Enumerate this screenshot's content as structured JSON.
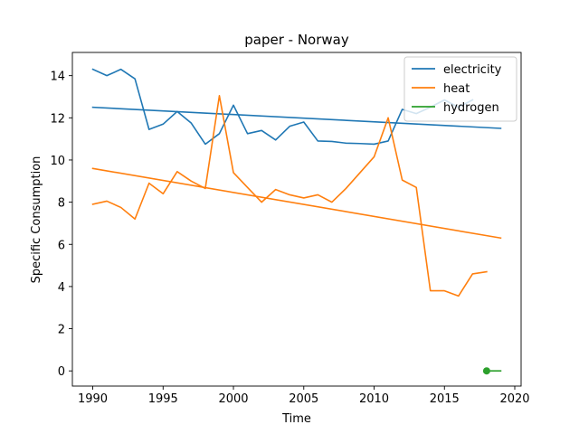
{
  "chart_data": {
    "type": "line",
    "title": "paper - Norway",
    "xlabel": "Time",
    "ylabel": "Specific Consumption",
    "xlim": [
      1988.55,
      2020.45
    ],
    "ylim": [
      -0.72,
      15.1
    ],
    "xticks": [
      1990,
      1995,
      2000,
      2005,
      2010,
      2015,
      2020
    ],
    "yticks": [
      0,
      2,
      4,
      6,
      8,
      10,
      12,
      14
    ],
    "grid": false,
    "legend_position": "top-right",
    "series": [
      {
        "name": "electricity",
        "color": "#1f77b4",
        "points": [
          [
            1990,
            14.3
          ],
          [
            1991,
            14.0
          ],
          [
            1992,
            14.3
          ],
          [
            1993,
            13.85
          ],
          [
            1994,
            11.45
          ],
          [
            1995,
            11.7
          ],
          [
            1996,
            12.3
          ],
          [
            1997,
            11.75
          ],
          [
            1998,
            10.75
          ],
          [
            1999,
            11.25
          ],
          [
            2000,
            12.6
          ],
          [
            2001,
            11.25
          ],
          [
            2002,
            11.4
          ],
          [
            2003,
            10.95
          ],
          [
            2004,
            11.6
          ],
          [
            2005,
            11.8
          ],
          [
            2006,
            10.9
          ],
          [
            2007,
            10.88
          ],
          [
            2008,
            10.8
          ],
          [
            2009,
            10.78
          ],
          [
            2010,
            10.75
          ],
          [
            2011,
            10.9
          ],
          [
            2012,
            12.4
          ],
          [
            2013,
            12.2
          ],
          [
            2014,
            12.5
          ],
          [
            2015,
            12.85
          ],
          [
            2016,
            12.5
          ],
          [
            2017,
            12.85
          ]
        ]
      },
      {
        "name": "",
        "color": "#1f77b4",
        "points": [
          [
            1990,
            12.5
          ],
          [
            2019,
            11.5
          ]
        ]
      },
      {
        "name": "heat",
        "color": "#ff7f0e",
        "points": [
          [
            1990,
            7.9
          ],
          [
            1991,
            8.05
          ],
          [
            1992,
            7.75
          ],
          [
            1993,
            7.2
          ],
          [
            1994,
            8.9
          ],
          [
            1995,
            8.4
          ],
          [
            1996,
            9.45
          ],
          [
            1997,
            9.0
          ],
          [
            1998,
            8.65
          ],
          [
            1999,
            13.05
          ],
          [
            2000,
            9.4
          ],
          [
            2001,
            8.7
          ],
          [
            2002,
            8.0
          ],
          [
            2003,
            8.6
          ],
          [
            2004,
            8.35
          ],
          [
            2005,
            8.2
          ],
          [
            2006,
            8.35
          ],
          [
            2007,
            8.0
          ],
          [
            2008,
            8.65
          ],
          [
            2009,
            9.4
          ],
          [
            2010,
            10.15
          ],
          [
            2011,
            12.0
          ],
          [
            2012,
            9.05
          ],
          [
            2013,
            8.7
          ],
          [
            2014,
            3.8
          ],
          [
            2015,
            3.8
          ],
          [
            2016,
            3.55
          ],
          [
            2017,
            4.6
          ],
          [
            2018,
            4.7
          ]
        ]
      },
      {
        "name": "",
        "color": "#ff7f0e",
        "points": [
          [
            1990,
            9.6
          ],
          [
            2019,
            6.3
          ]
        ]
      },
      {
        "name": "hydrogen",
        "color": "#2ca02c",
        "points": [
          [
            2018,
            0.0
          ]
        ],
        "marker": "circle"
      },
      {
        "name": "",
        "color": "#2ca02c",
        "points": [
          [
            2018,
            0.0
          ],
          [
            2019,
            0.0
          ]
        ]
      }
    ]
  }
}
